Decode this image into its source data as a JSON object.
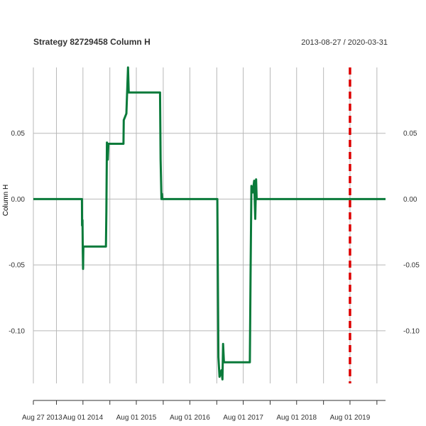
{
  "chart_data": {
    "type": "line",
    "title": "Strategy 82729458 Column H",
    "date_range": "2013-08-27 / 2020-03-31",
    "ylabel": "Column H",
    "xlim": [
      "2013-08-27",
      "2020-03-31"
    ],
    "ylim": [
      -0.14,
      0.1
    ],
    "grid": true,
    "y_ticks": [
      {
        "value": 0.05,
        "label": "0.05"
      },
      {
        "value": 0.0,
        "label": "0.00"
      },
      {
        "value": -0.05,
        "label": "-0.05"
      },
      {
        "value": -0.1,
        "label": "-0.10"
      }
    ],
    "x_ticks": [
      {
        "date": "2013-08-27",
        "label": "Aug 27 2013"
      },
      {
        "date": "2014-08-01",
        "label": "Aug 01 2014"
      },
      {
        "date": "2015-08-01",
        "label": "Aug 01 2015"
      },
      {
        "date": "2016-08-01",
        "label": "Aug 01 2016"
      },
      {
        "date": "2017-08-01",
        "label": "Aug 01 2017"
      },
      {
        "date": "2018-08-01",
        "label": "Aug 01 2018"
      },
      {
        "date": "2019-08-01",
        "label": "Aug 01 2019"
      }
    ],
    "grid_dates": [
      "2013-08-27",
      "2014-02-01",
      "2014-08-01",
      "2015-02-01",
      "2015-08-01",
      "2016-02-01",
      "2016-08-01",
      "2017-02-01",
      "2017-08-01",
      "2018-02-01",
      "2018-08-01",
      "2019-02-01",
      "2019-08-01",
      "2020-02-01"
    ],
    "marker_date": "2019-08-01",
    "series": [
      {
        "color": "#0a7a3a",
        "points": [
          [
            "2013-08-27",
            0.0
          ],
          [
            "2014-07-25",
            0.0
          ],
          [
            "2014-07-26",
            -0.02
          ],
          [
            "2014-07-29",
            -0.016
          ],
          [
            "2014-07-31",
            -0.04
          ],
          [
            "2014-08-02",
            -0.053
          ],
          [
            "2014-08-04",
            -0.036
          ],
          [
            "2015-01-05",
            -0.036
          ],
          [
            "2015-01-08",
            -0.01
          ],
          [
            "2015-01-12",
            0.043
          ],
          [
            "2015-01-18",
            0.03
          ],
          [
            "2015-01-22",
            0.042
          ],
          [
            "2015-05-05",
            0.042
          ],
          [
            "2015-05-07",
            0.06
          ],
          [
            "2015-05-25",
            0.065
          ],
          [
            "2015-06-05",
            0.1
          ],
          [
            "2015-06-10",
            0.081
          ],
          [
            "2016-01-10",
            0.081
          ],
          [
            "2016-01-14",
            0.03
          ],
          [
            "2016-01-20",
            0.0
          ],
          [
            "2016-01-23",
            0.004
          ],
          [
            "2016-01-26",
            0.0
          ],
          [
            "2017-02-05",
            0.0
          ],
          [
            "2017-02-12",
            -0.12
          ],
          [
            "2017-02-20",
            -0.135
          ],
          [
            "2017-03-05",
            -0.13
          ],
          [
            "2017-03-12",
            -0.137
          ],
          [
            "2017-03-16",
            -0.11
          ],
          [
            "2017-03-22",
            -0.124
          ],
          [
            "2017-09-15",
            -0.124
          ],
          [
            "2017-09-20",
            -0.058
          ],
          [
            "2017-09-26",
            0.01
          ],
          [
            "2017-10-05",
            0.005
          ],
          [
            "2017-10-15",
            0.014
          ],
          [
            "2017-10-22",
            -0.015
          ],
          [
            "2017-10-28",
            0.015
          ],
          [
            "2017-11-01",
            0.0
          ],
          [
            "2020-03-31",
            0.0
          ]
        ]
      }
    ]
  }
}
